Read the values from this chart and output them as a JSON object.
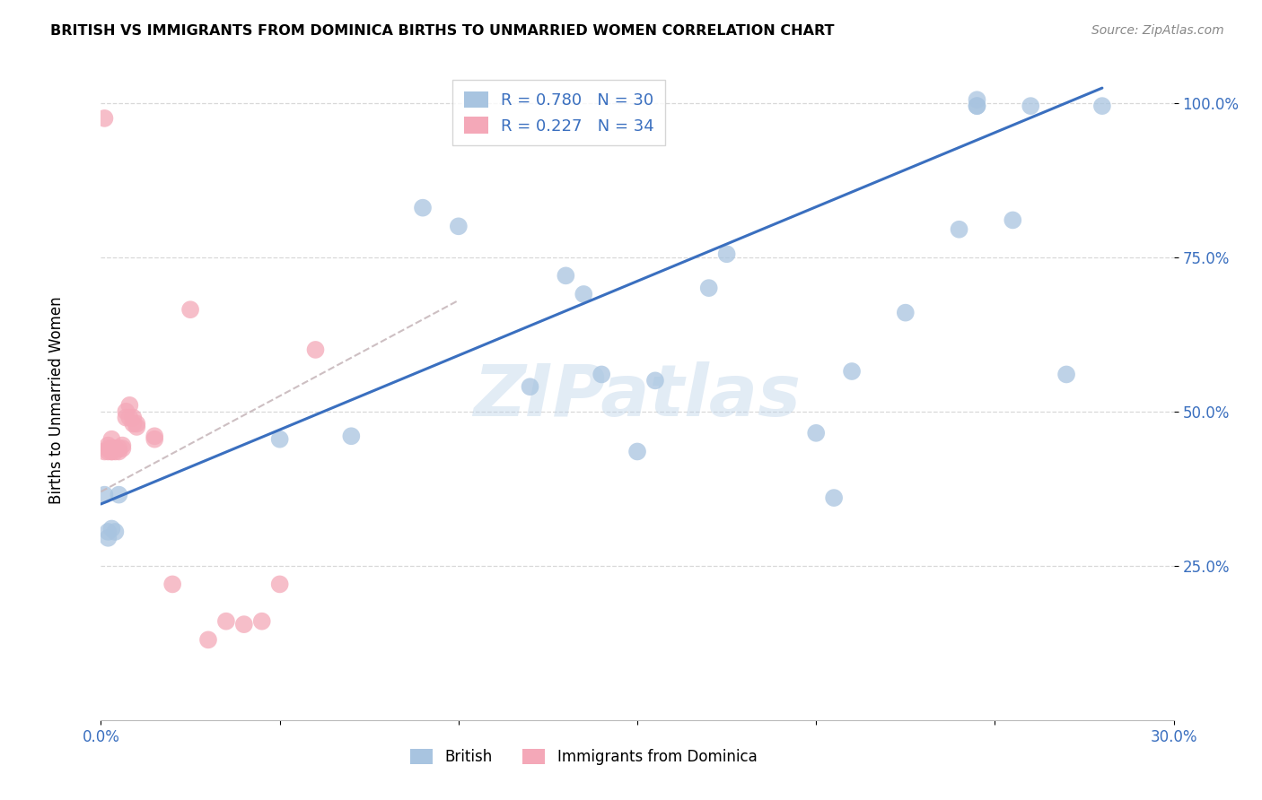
{
  "title": "BRITISH VS IMMIGRANTS FROM DOMINICA BIRTHS TO UNMARRIED WOMEN CORRELATION CHART",
  "source": "Source: ZipAtlas.com",
  "ylabel": "Births to Unmarried Women",
  "watermark": "ZIPatlas",
  "british_R": 0.78,
  "british_N": 30,
  "dominica_R": 0.227,
  "dominica_N": 34,
  "xlim": [
    0.0,
    0.3
  ],
  "ylim": [
    0.0,
    1.05
  ],
  "yticks": [
    0.25,
    0.5,
    0.75,
    1.0
  ],
  "ytick_labels": [
    "25.0%",
    "50.0%",
    "75.0%",
    "100.0%"
  ],
  "xticks": [
    0.0,
    0.05,
    0.1,
    0.15,
    0.2,
    0.25,
    0.3
  ],
  "xtick_labels": [
    "0.0%",
    "",
    "",
    "",
    "",
    "",
    "30.0%"
  ],
  "british_color": "#a8c4e0",
  "dominica_color": "#f4a8b8",
  "british_line_color": "#3a6fbf",
  "dominica_line_color": "#c0a0a8",
  "background_color": "#ffffff",
  "grid_color": "#d8d8d8",
  "british_x": [
    0.001,
    0.002,
    0.002,
    0.003,
    0.004,
    0.005,
    0.05,
    0.07,
    0.09,
    0.1,
    0.12,
    0.13,
    0.135,
    0.14,
    0.15,
    0.155,
    0.17,
    0.175,
    0.2,
    0.205,
    0.21,
    0.225,
    0.24,
    0.245,
    0.245,
    0.245,
    0.255,
    0.26,
    0.27,
    0.28
  ],
  "british_y": [
    0.365,
    0.305,
    0.295,
    0.31,
    0.305,
    0.365,
    0.455,
    0.46,
    0.83,
    0.8,
    0.54,
    0.72,
    0.69,
    0.56,
    0.435,
    0.55,
    0.7,
    0.755,
    0.465,
    0.36,
    0.565,
    0.66,
    0.795,
    0.995,
    1.005,
    0.995,
    0.81,
    0.995,
    0.56,
    0.995
  ],
  "dominica_x": [
    0.001,
    0.001,
    0.002,
    0.002,
    0.002,
    0.003,
    0.003,
    0.003,
    0.003,
    0.004,
    0.004,
    0.004,
    0.005,
    0.005,
    0.006,
    0.006,
    0.007,
    0.007,
    0.008,
    0.008,
    0.009,
    0.009,
    0.01,
    0.01,
    0.015,
    0.015,
    0.02,
    0.025,
    0.03,
    0.035,
    0.04,
    0.045,
    0.05,
    0.06
  ],
  "dominica_y": [
    0.975,
    0.435,
    0.445,
    0.435,
    0.44,
    0.435,
    0.44,
    0.435,
    0.455,
    0.44,
    0.435,
    0.44,
    0.435,
    0.44,
    0.445,
    0.44,
    0.5,
    0.49,
    0.49,
    0.51,
    0.48,
    0.49,
    0.475,
    0.48,
    0.455,
    0.46,
    0.22,
    0.665,
    0.13,
    0.16,
    0.155,
    0.16,
    0.22,
    0.6
  ],
  "dominica_line_x": [
    0.0,
    0.1
  ],
  "dominica_line_y": [
    0.37,
    0.68
  ]
}
